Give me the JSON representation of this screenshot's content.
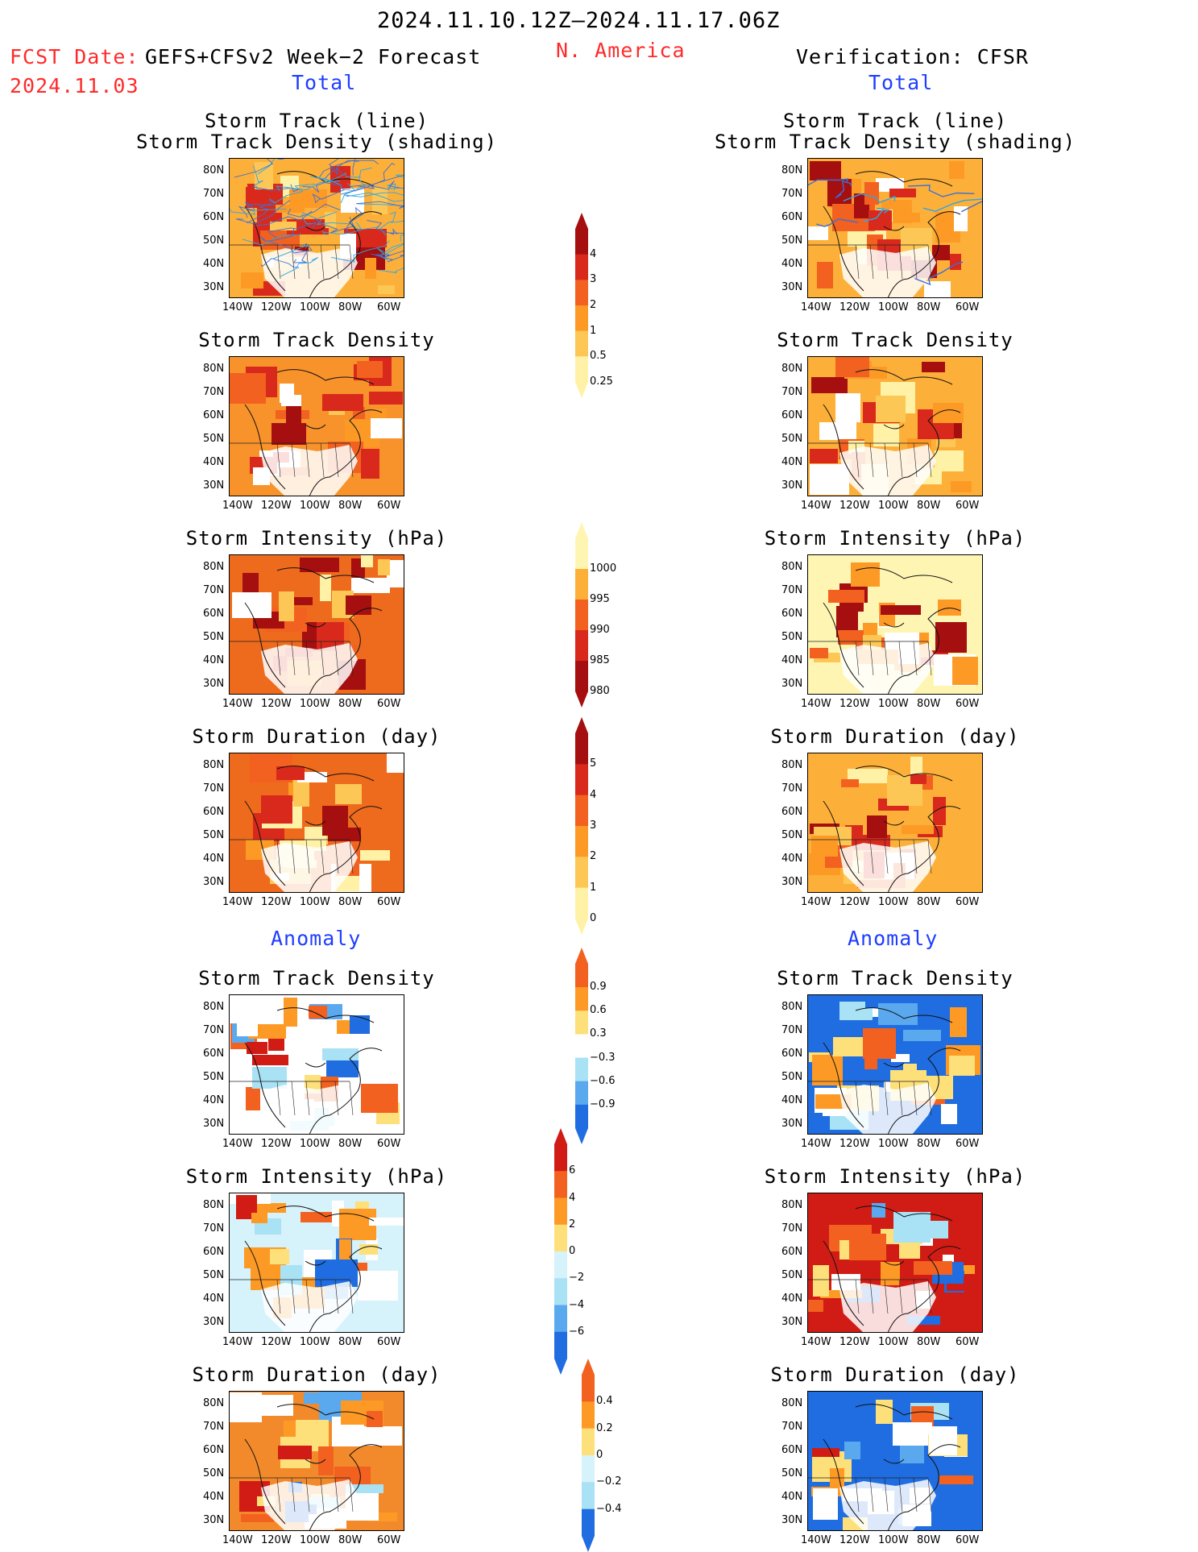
{
  "header": {
    "period": "2024.11.10.12Z–2024.11.17.06Z",
    "region": "N. America",
    "fcst_label": "FCST Date:",
    "fcst_model": "GEFS+CFSv2 Week−2 Forecast",
    "fcst_date": "2024.11.03",
    "verification": "Verification: CFSR"
  },
  "sections": {
    "total": "Total",
    "anomaly": "Anomaly"
  },
  "axes": {
    "lat_ticks": [
      "80N",
      "70N",
      "60N",
      "50N",
      "40N",
      "30N"
    ],
    "lon_ticks": [
      "140W",
      "120W",
      "100W",
      "80W",
      "60W"
    ]
  },
  "panels": [
    {
      "id": "fc-track",
      "title_lines": [
        "Storm Track (line)",
        "Storm Track Density (shading)"
      ],
      "type": "total",
      "base": "#fdb039"
    },
    {
      "id": "fc-density",
      "title_lines": [
        "Storm Track Density"
      ],
      "type": "total",
      "base": "#f8922b"
    },
    {
      "id": "fc-intensity",
      "title_lines": [
        "Storm Intensity (hPa)"
      ],
      "type": "total",
      "base": "#ee6a1c"
    },
    {
      "id": "fc-duration",
      "title_lines": [
        "Storm Duration (day)"
      ],
      "type": "total",
      "base": "#ee6a1c"
    },
    {
      "id": "fc-density-anom",
      "title_lines": [
        "Storm Track Density"
      ],
      "type": "anomaly",
      "base": "#ffffff"
    },
    {
      "id": "fc-intensity-anom",
      "title_lines": [
        "Storm Intensity (hPa)"
      ],
      "type": "anomaly",
      "base": "#d6f2fb"
    },
    {
      "id": "fc-duration-anom",
      "title_lines": [
        "Storm Duration (day)"
      ],
      "type": "anomaly",
      "base": "#f28a2c"
    },
    {
      "id": "vf-track",
      "title_lines": [
        "Storm Track (line)",
        "Storm Track Density (shading)"
      ],
      "type": "total",
      "base": "#fdb039"
    },
    {
      "id": "vf-density",
      "title_lines": [
        "Storm Track Density"
      ],
      "type": "total",
      "base": "#fdb039"
    },
    {
      "id": "vf-intensity",
      "title_lines": [
        "Storm Intensity (hPa)"
      ],
      "type": "total",
      "base": "#fff5b3"
    },
    {
      "id": "vf-duration",
      "title_lines": [
        "Storm Duration (day)"
      ],
      "type": "total",
      "base": "#fdb039"
    },
    {
      "id": "vf-density-anom",
      "title_lines": [
        "Storm Track Density"
      ],
      "type": "anomaly",
      "base": "#1f6de0"
    },
    {
      "id": "vf-intensity-anom",
      "title_lines": [
        "Storm Intensity (hPa)"
      ],
      "type": "anomaly",
      "base": "#d01c15"
    },
    {
      "id": "vf-duration-anom",
      "title_lines": [
        "Storm Duration (day)"
      ],
      "type": "anomaly",
      "base": "#1f6de0"
    }
  ],
  "colorbars": [
    {
      "id": "cb-density",
      "labels": [
        "4",
        "3",
        "2",
        "1",
        "0.5",
        "0.25"
      ],
      "colors": [
        "#a50f0f",
        "#d9291c",
        "#f2611f",
        "#fd9a26",
        "#fdc756",
        "#fff2a6"
      ]
    },
    {
      "id": "cb-intensity",
      "labels": [
        "1000",
        "995",
        "990",
        "985",
        "980"
      ],
      "colors": [
        "#fff5b3",
        "#fdb039",
        "#f2611f",
        "#d9291c",
        "#a50f0f"
      ]
    },
    {
      "id": "cb-duration",
      "labels": [
        "5",
        "4",
        "3",
        "2",
        "1",
        "0"
      ],
      "colors": [
        "#a50f0f",
        "#d9291c",
        "#f2611f",
        "#fd9a26",
        "#fdc756",
        "#fff2a6"
      ]
    },
    {
      "id": "cb-density-anom",
      "labels": [
        "0.9",
        "0.6",
        "0.3",
        "−0.3",
        "−0.6",
        "−0.9"
      ],
      "colors": [
        "#f2611f",
        "#fd9a26",
        "#fde07a",
        "#ffffff",
        "#a9e1f5",
        "#5aa9ee",
        "#1f6de0"
      ]
    },
    {
      "id": "cb-intensity-anom",
      "labels": [
        "6",
        "4",
        "2",
        "0",
        "−2",
        "−4",
        "−6"
      ],
      "colors": [
        "#d01c15",
        "#f2611f",
        "#fd9a26",
        "#fde07a",
        "#d6f2fb",
        "#a9e1f5",
        "#5aa9ee",
        "#1f6de0"
      ]
    },
    {
      "id": "cb-duration-anom",
      "labels": [
        "0.4",
        "0.2",
        "0",
        "−0.2",
        "−0.4"
      ],
      "colors": [
        "#f2611f",
        "#fd9a26",
        "#fde07a",
        "#d6f2fb",
        "#a9e1f5",
        "#1f6de0"
      ]
    }
  ]
}
